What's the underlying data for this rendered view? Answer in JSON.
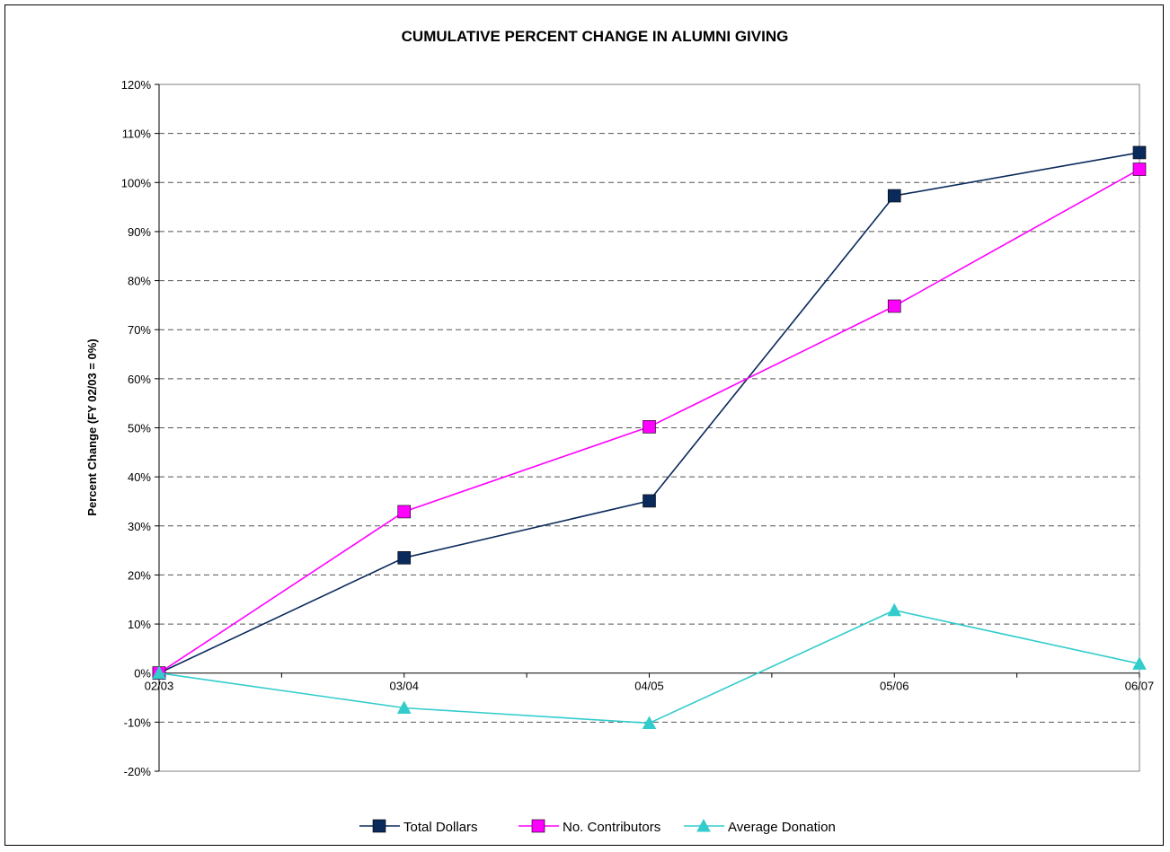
{
  "chart_data": {
    "type": "line",
    "title": "CUMULATIVE PERCENT CHANGE IN ALUMNI GIVING",
    "xlabel": "",
    "ylabel": "Percent Change (FY 02/03 = 0%)",
    "categories": [
      "02/03",
      "03/04",
      "04/05",
      "05/06",
      "06/07"
    ],
    "ylim": [
      -20,
      120
    ],
    "ytick_step": 10,
    "yticks": [
      "-20%",
      "-10%",
      "0%",
      "10%",
      "20%",
      "30%",
      "40%",
      "50%",
      "60%",
      "70%",
      "80%",
      "90%",
      "100%",
      "110%",
      "120%"
    ],
    "grid": "horizontal dashed",
    "legend_position": "bottom",
    "series": [
      {
        "name": "Total Dollars",
        "color": "#0b2a5c",
        "marker": "square",
        "values": [
          0,
          23.5,
          35.1,
          97.3,
          106.1
        ]
      },
      {
        "name": "No. Contributors",
        "color": "#ff00ff",
        "marker": "square",
        "values": [
          0,
          32.9,
          50.2,
          74.8,
          102.7
        ]
      },
      {
        "name": "Average Donation",
        "color": "#33cccc",
        "marker": "triangle",
        "values": [
          0,
          -7.1,
          -10.2,
          12.8,
          1.9
        ]
      }
    ]
  }
}
